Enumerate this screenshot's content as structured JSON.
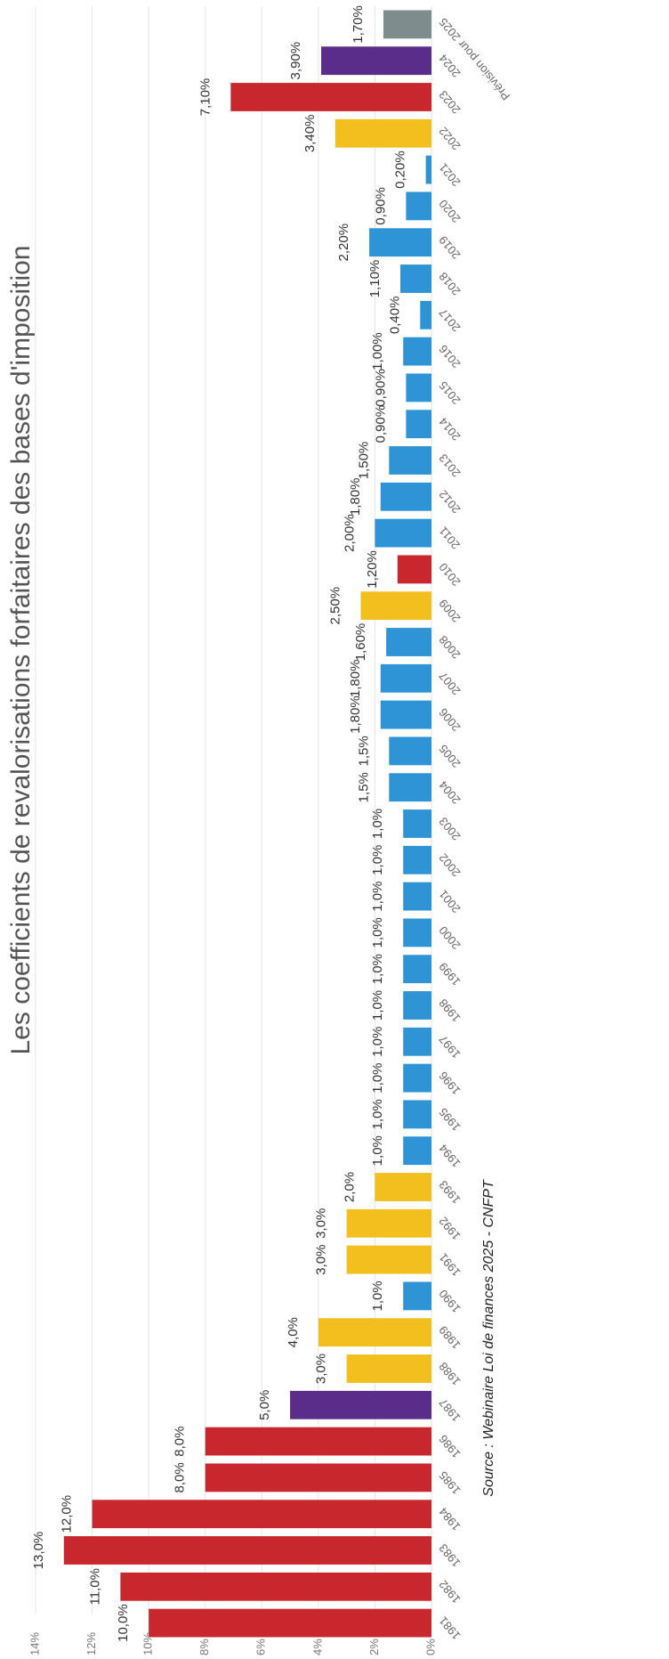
{
  "chart_data": {
    "type": "bar",
    "title": "Les coefficients de revalorisations forfaitaires des bases d'imposition",
    "source": "Source : Webinaire Loi de finances 2025 - CNFPT",
    "categories": [
      "1981",
      "1982",
      "1983",
      "1984",
      "1985",
      "1986",
      "1987",
      "1988",
      "1989",
      "1990",
      "1991",
      "1992",
      "1993",
      "1994",
      "1995",
      "1996",
      "1997",
      "1998",
      "1999",
      "2000",
      "2001",
      "2002",
      "2003",
      "2004",
      "2005",
      "2006",
      "2007",
      "2008",
      "2009",
      "2010",
      "2011",
      "2012",
      "2013",
      "2014",
      "2015",
      "2016",
      "2017",
      "2018",
      "2019",
      "2020",
      "2021",
      "2022",
      "2023",
      "2024",
      "Prévision pour 2025"
    ],
    "values": [
      10,
      11,
      13,
      12,
      8,
      8,
      5,
      3,
      4,
      1,
      3,
      3,
      2,
      1,
      1,
      1,
      1,
      1,
      1,
      1,
      1,
      1,
      1,
      1.5,
      1.5,
      1.8,
      1.8,
      1.6,
      2.5,
      1.2,
      2.0,
      1.8,
      1.5,
      0.9,
      0.9,
      1.0,
      0.4,
      1.1,
      2.2,
      0.9,
      0.2,
      3.4,
      7.1,
      3.9,
      1.7
    ],
    "value_labels": [
      "10,0%",
      "11,0%",
      "13,0%",
      "12,0%",
      "8,0%",
      "8,0%",
      "5,0%",
      "3,0%",
      "4,0%",
      "1,0%",
      "3,0%",
      "3,0%",
      "2,0%",
      "1,0%",
      "1,0%",
      "1,0%",
      "1,0%",
      "1,0%",
      "1,0%",
      "1,0%",
      "1,0%",
      "1,0%",
      "1,0%",
      "1,5%",
      "1,5%",
      "1,80%",
      "1,80%",
      "1,60%",
      "2,50%",
      "1,20%",
      "2,00%",
      "1,80%",
      "1,50%",
      "0,90%",
      "0,90%",
      "1,00%",
      "0,40%",
      "1,10%",
      "2,20%",
      "0,90%",
      "0,20%",
      "3,40%",
      "7,10%",
      "3,90%",
      "1,70%"
    ],
    "colors": [
      "#c8282d",
      "#c8282d",
      "#c8282d",
      "#c8282d",
      "#c8282d",
      "#c8282d",
      "#5b2d8a",
      "#f2bf1e",
      "#f2bf1e",
      "#2e94d6",
      "#f2bf1e",
      "#f2bf1e",
      "#f2bf1e",
      "#2e94d6",
      "#2e94d6",
      "#2e94d6",
      "#2e94d6",
      "#2e94d6",
      "#2e94d6",
      "#2e94d6",
      "#2e94d6",
      "#2e94d6",
      "#2e94d6",
      "#2e94d6",
      "#2e94d6",
      "#2e94d6",
      "#2e94d6",
      "#2e94d6",
      "#f2bf1e",
      "#c8282d",
      "#2e94d6",
      "#2e94d6",
      "#2e94d6",
      "#2e94d6",
      "#2e94d6",
      "#2e94d6",
      "#2e94d6",
      "#2e94d6",
      "#2e94d6",
      "#2e94d6",
      "#2e94d6",
      "#f2bf1e",
      "#c8282d",
      "#5b2d8a",
      "#7f8c8d"
    ],
    "ylim": [
      0,
      14
    ],
    "yticks": [
      {
        "value": 0,
        "label": "0%"
      },
      {
        "value": 2,
        "label": "2%"
      },
      {
        "value": 4,
        "label": "4%"
      },
      {
        "value": 6,
        "label": "6%"
      },
      {
        "value": 8,
        "label": "8%"
      },
      {
        "value": 10,
        "label": "10%"
      },
      {
        "value": 12,
        "label": "12%"
      },
      {
        "value": 14,
        "label": "14%"
      }
    ],
    "grid": true
  }
}
